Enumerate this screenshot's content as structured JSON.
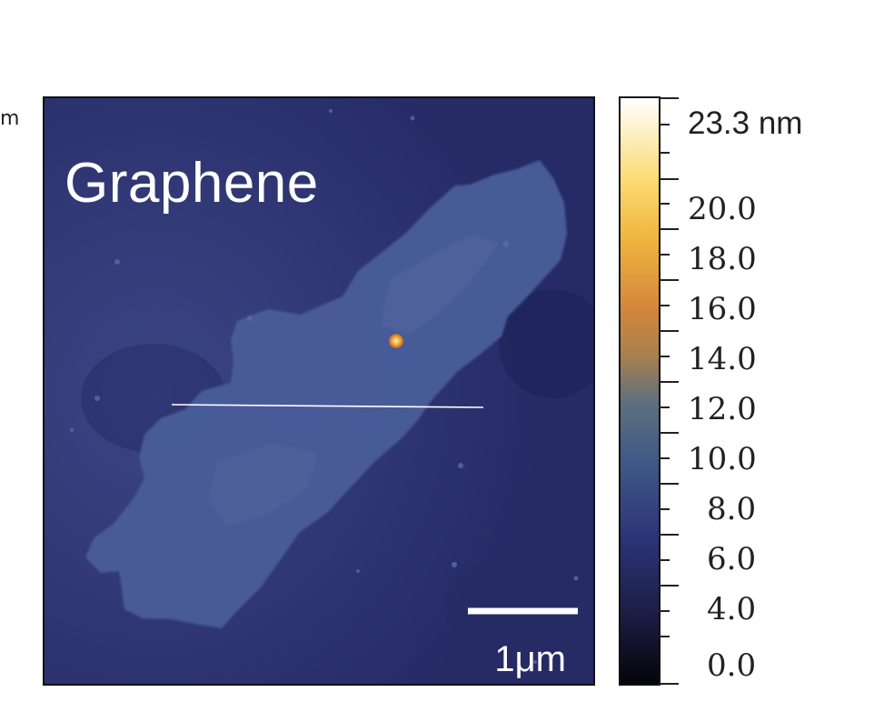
{
  "edge_label": "m",
  "image": {
    "sample_label": "Graphene",
    "scalebar_label": "1μm",
    "colors": {
      "background": "#2c3272",
      "flake": "#4a5d9a",
      "particle": "#f2a63a"
    }
  },
  "colorbar": {
    "max_label": "23.3 nm",
    "tick_labels": [
      "20.0",
      "18.0",
      "16.0",
      "14.0",
      "12.0",
      "10.0",
      "8.0",
      "6.0",
      "4.0",
      "0.0"
    ]
  }
}
